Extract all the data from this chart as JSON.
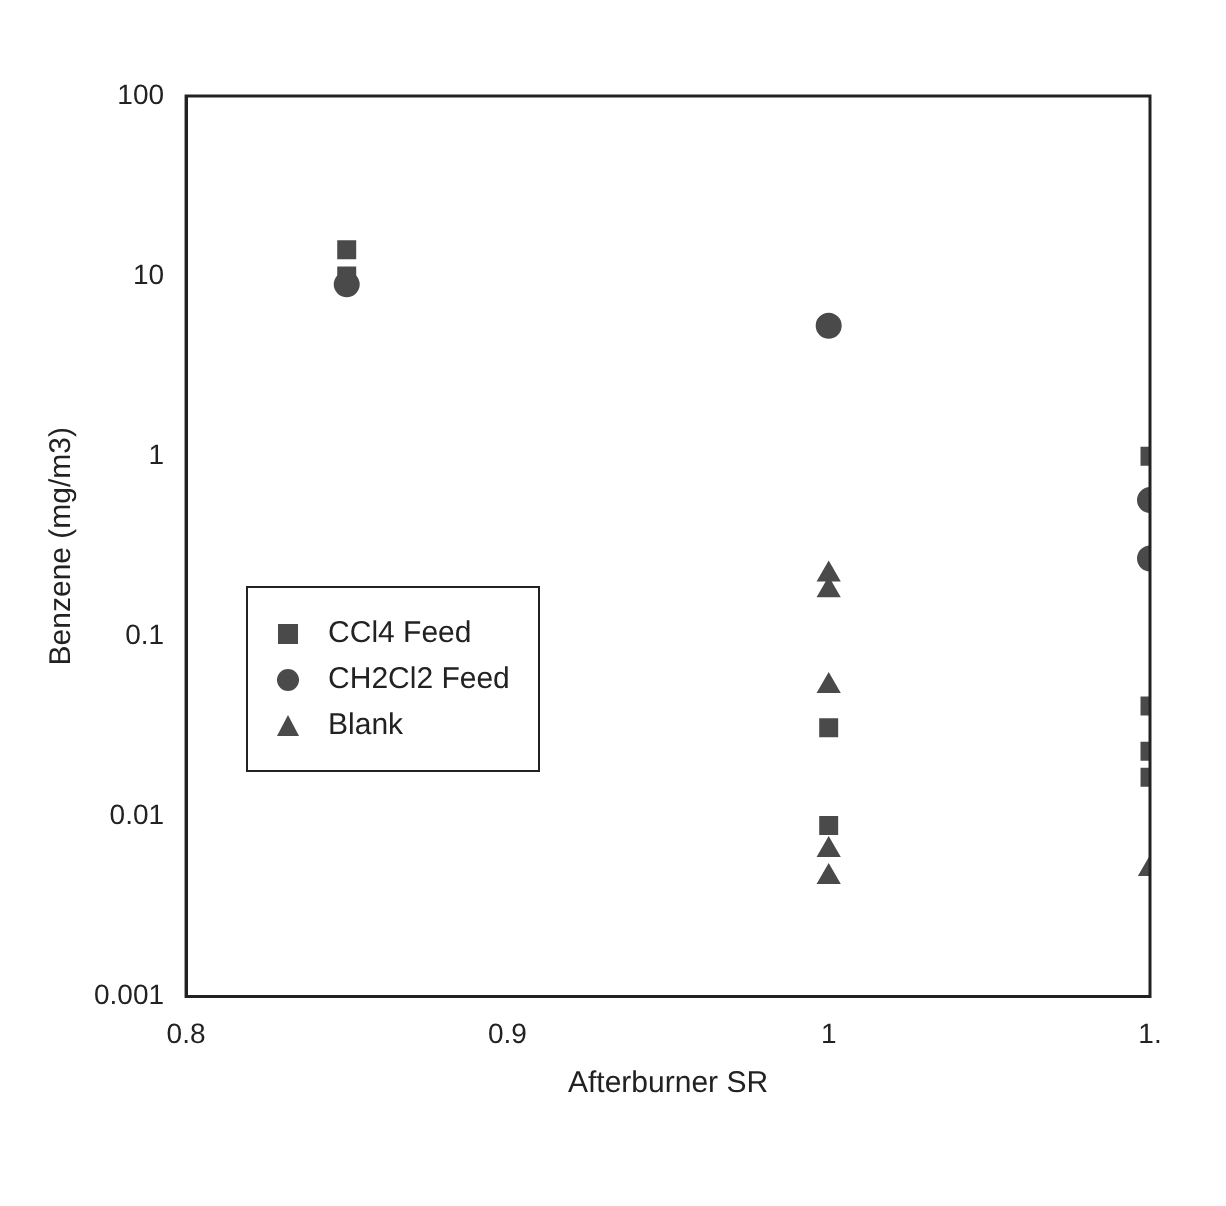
{
  "chart_data": {
    "type": "scatter",
    "xlabel": "Afterburner SR",
    "ylabel": "Benzene (mg/m3)",
    "xlim": [
      0.8,
      1.1
    ],
    "xticks": [
      0.8,
      0.9,
      1,
      {
        "value": 1.1,
        "label": "1."
      }
    ],
    "ylim": [
      0.001,
      100
    ],
    "yticks": [
      0.001,
      0.01,
      0.1,
      1,
      10,
      100
    ],
    "log": "y",
    "grid": false,
    "legend": "left",
    "series": [
      {
        "name": "CCl4 Feed",
        "color": "#4a4a4a",
        "marker": "square",
        "x": [
          0.85,
          0.85,
          1,
          1,
          1.1,
          1.1,
          1.1,
          1.1
        ],
        "values": [
          14,
          10,
          0.031,
          0.0089,
          1.0,
          0.041,
          0.023,
          0.0165
        ]
      },
      {
        "name": "CH2Cl2 Feed",
        "color": "#4a4a4a",
        "marker": "circle",
        "x": [
          0.85,
          1,
          1.1,
          1.1
        ],
        "values": [
          9,
          5.3,
          0.57,
          0.27
        ]
      },
      {
        "name": "Blank",
        "color": "#4a4a4a",
        "marker": "triangle",
        "x": [
          1,
          1,
          1,
          1,
          1,
          1.1
        ],
        "values": [
          0.22,
          0.18,
          0.053,
          0.0065,
          0.0046,
          0.0051
        ]
      }
    ]
  }
}
